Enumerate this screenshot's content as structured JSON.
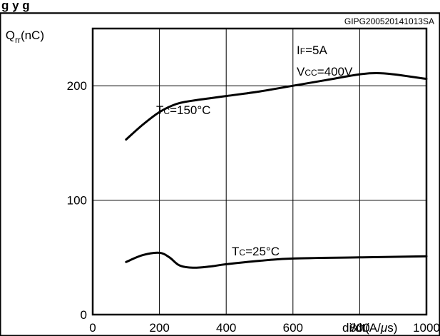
{
  "chart_data": {
    "type": "line",
    "title": "",
    "figure_code": "GIPG200520141013SA",
    "header_fragment": "g                              y  g",
    "ylabel": {
      "base": "Q",
      "sub": "rr",
      "unit": "(nC)"
    },
    "xlabel": {
      "pre": "di/dt(A/",
      "mu": "μ",
      "post": "s)"
    },
    "xlim": [
      0,
      1000
    ],
    "ylim": [
      0,
      250
    ],
    "x_ticks": [
      0,
      200,
      400,
      600,
      800,
      1000
    ],
    "x_tick_labels": [
      "0",
      "200",
      "400",
      "600",
      "800",
      "1000"
    ],
    "y_ticks": [
      0,
      100,
      200
    ],
    "y_tick_labels": [
      "0",
      "100",
      "200"
    ],
    "x_gridlines": [
      200,
      400,
      600,
      800
    ],
    "y_gridlines": [
      100,
      200
    ],
    "grid": true,
    "conditions": [
      {
        "main": "I",
        "sub": "F",
        "value": "=5A"
      },
      {
        "main": "V",
        "sub": "CC",
        "value": "=400V"
      }
    ],
    "series": [
      {
        "label_main": "T",
        "label_sub": "C",
        "label_value": "=150°C",
        "x": [
          100,
          150,
          200,
          250,
          300,
          400,
          500,
          600,
          700,
          800,
          850,
          900,
          1000
        ],
        "y": [
          153,
          166,
          177,
          184,
          187,
          191,
          195,
          200,
          205,
          210,
          211,
          210,
          206
        ]
      },
      {
        "label_main": "T",
        "label_sub": "C",
        "label_value": "=25°C",
        "x": [
          100,
          150,
          200,
          230,
          260,
          300,
          350,
          400,
          500,
          600,
          800,
          1000
        ],
        "y": [
          46,
          52,
          54,
          50,
          43,
          41,
          42,
          44,
          47,
          49,
          50,
          51
        ]
      }
    ]
  }
}
